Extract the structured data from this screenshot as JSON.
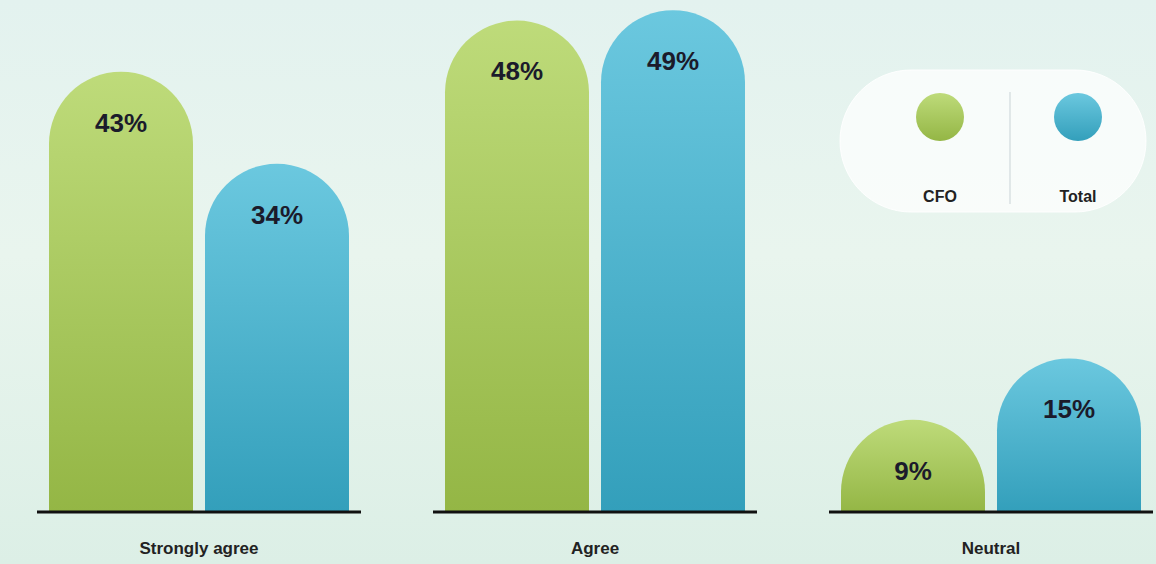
{
  "chart_data": {
    "type": "bar",
    "categories": [
      "Strongly agree",
      "Agree",
      "Neutral"
    ],
    "series": [
      {
        "name": "CFO",
        "color": "#a8cf4e",
        "values": [
          43,
          48,
          9
        ],
        "value_labels": [
          "43%",
          "48%",
          "9%"
        ]
      },
      {
        "name": "Total",
        "color": "#3ab5d4",
        "values": [
          34,
          49,
          15
        ],
        "value_labels": [
          "34%",
          "49%",
          "15%"
        ]
      }
    ],
    "ylim": [
      0,
      50
    ],
    "data_labels": true,
    "tick_labels": "x",
    "legend": "top-right",
    "grid": false
  }
}
